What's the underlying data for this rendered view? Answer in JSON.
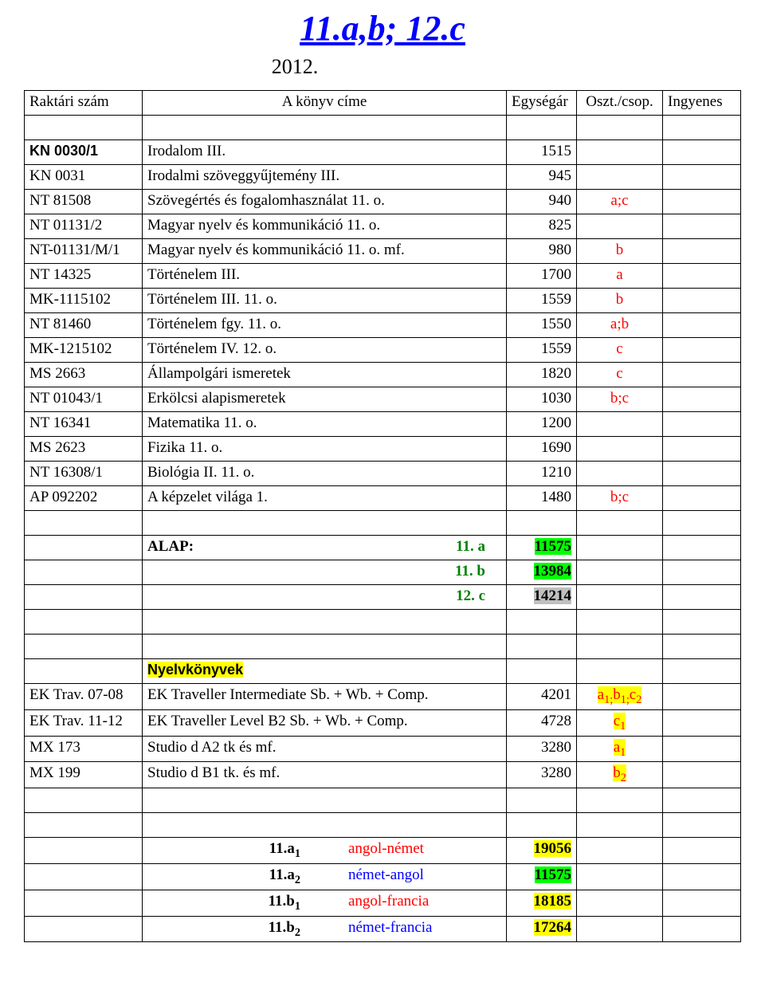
{
  "title": "11.a,b; 12.c",
  "year": "2012.",
  "headers": {
    "code": "Raktári szám",
    "title": "A könyv címe",
    "price": "Egységár",
    "group": "Oszt./csop.",
    "free": "Ingyenes"
  },
  "rows": [
    {
      "code": "KN 0030/1",
      "code_sans": true,
      "title": "Irodalom III.",
      "price": "1515",
      "group": "",
      "group_color": ""
    },
    {
      "code": "KN 0031",
      "title": "Irodalmi szöveggyűjtemény III.",
      "price": "945",
      "group": "",
      "group_color": ""
    },
    {
      "code": "NT 81508",
      "title": "Szövegértés és fogalomhasználat 11. o.",
      "price": "940",
      "group": "a;c",
      "group_color": "red"
    },
    {
      "code": "NT 01131/2",
      "title": "Magyar nyelv és kommunikáció 11. o.",
      "price": "825",
      "group": "",
      "group_color": ""
    },
    {
      "code": "NT-01131/M/1",
      "title": "Magyar nyelv és kommunikáció 11. o. mf.",
      "price": "980",
      "group": "b",
      "group_color": "red"
    },
    {
      "code": "NT 14325",
      "title": "Történelem III.",
      "price": "1700",
      "group": "a",
      "group_color": "red"
    },
    {
      "code": "MK-1115102",
      "title": "Történelem III. 11. o.",
      "price": "1559",
      "group": "b",
      "group_color": "red"
    },
    {
      "code": "NT 81460",
      "title": "Történelem fgy. 11. o.",
      "price": "1550",
      "group": "a;b",
      "group_color": "red"
    },
    {
      "code": "MK-1215102",
      "title": "Történelem IV. 12. o.",
      "price": "1559",
      "group": "c",
      "group_color": "red"
    },
    {
      "code": "MS 2663",
      "title": "Állampolgári ismeretek",
      "price": "1820",
      "group": "c",
      "group_color": "red"
    },
    {
      "code": "NT 01043/1",
      "title": "Erkölcsi alapismeretek",
      "price": "1030",
      "group": "b;c",
      "group_color": "red"
    },
    {
      "code": "NT 16341",
      "title": "Matematika 11. o.",
      "price": "1200",
      "group": "",
      "group_color": ""
    },
    {
      "code": "MS 2623",
      "title": "Fizika 11. o.",
      "price": "1690",
      "group": "",
      "group_color": ""
    },
    {
      "code": "NT 16308/1",
      "title": "Biológia II. 11. o.",
      "price": "1210",
      "group": "",
      "group_color": ""
    },
    {
      "code": "AP 092202",
      "title": "A képzelet világa 1.",
      "price": "1480",
      "group": "b;c",
      "group_color": "red"
    }
  ],
  "alap": {
    "label": "ALAP:",
    "lines": [
      {
        "cls": "11. a",
        "val": "11575",
        "hl": "highlight-green"
      },
      {
        "cls": "11. b",
        "val": "13984",
        "hl": "highlight-green"
      },
      {
        "cls": "12. c",
        "val": "14214",
        "hl": "highlight-grey"
      }
    ]
  },
  "nyelv_label": "Nyelvkönyvek",
  "nyelv_rows": [
    {
      "code": "EK Trav. 07-08",
      "title": "EK Traveller Intermediate Sb. + Wb. + Comp.",
      "price": "4201",
      "group_html": "a<sub>1;</sub>b<sub>1;</sub>c<sub>2</sub>",
      "bg": "highlight-yellow"
    },
    {
      "code": "EK Trav. 11-12",
      "title": "EK Traveller Level B2 Sb. + Wb. + Comp.",
      "price": "4728",
      "group_html": "c<sub>1</sub>",
      "bg": "highlight-yellow"
    },
    {
      "code": "MX 173",
      "title": "Studio d A2 tk és mf.",
      "price": "3280",
      "group_html": "a<sub>1</sub>",
      "bg": "highlight-yellow"
    },
    {
      "code": "MX 199",
      "title": "Studio d B1 tk. és mf.",
      "price": "3280",
      "group_html": "b<sub>2</sub>",
      "bg": "highlight-yellow"
    }
  ],
  "lang_totals": [
    {
      "cls_html": "11.a<sub>1</sub>",
      "lang": "angol-német",
      "lang_color": "red",
      "val": "19056",
      "hl": "highlight-yellow"
    },
    {
      "cls_html": "11.a<sub>2</sub>",
      "lang": "német-angol",
      "lang_color": "blue",
      "val": "11575",
      "hl": "highlight-green"
    },
    {
      "cls_html": "11.b<sub>1</sub>",
      "lang": "angol-francia",
      "lang_color": "red",
      "val": "18185",
      "hl": "highlight-yellow"
    },
    {
      "cls_html": "11.b<sub>2</sub>",
      "lang": "német-francia",
      "lang_color": "blue",
      "val": "17264",
      "hl": "highlight-yellow"
    }
  ]
}
